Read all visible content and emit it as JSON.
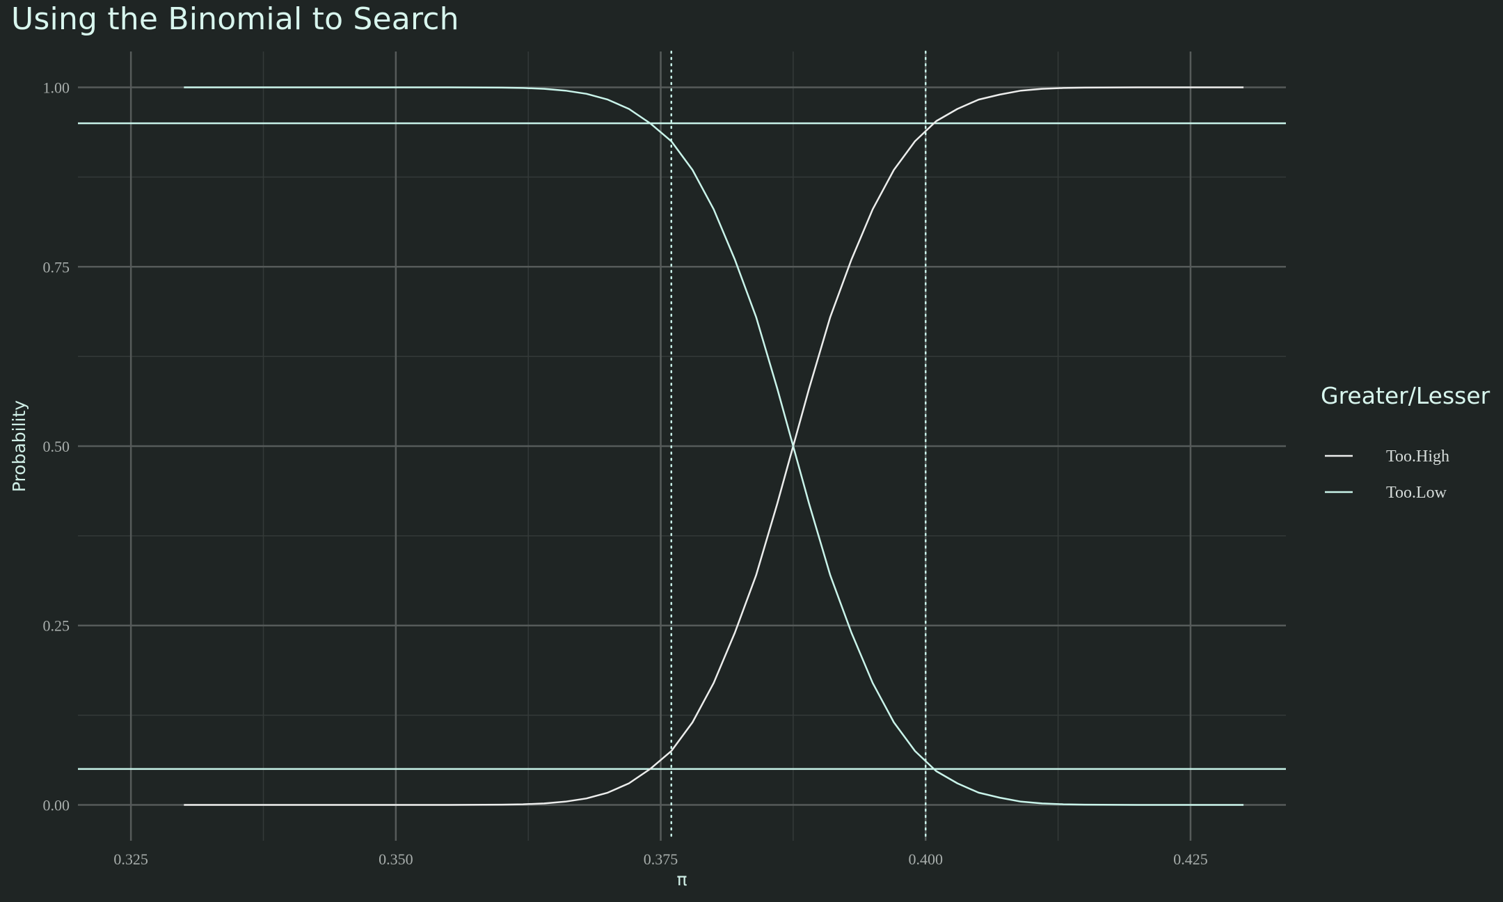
{
  "title": "Using the Binomial to Search",
  "colors": {
    "background": "#1f2524",
    "major_grid": "#565b5a",
    "minor_grid": "#343a39",
    "too_high": "#ecedec",
    "too_low": "#c9f4ea",
    "reference": "#c9f4ea"
  },
  "chart_data": {
    "type": "line",
    "xlabel": "π",
    "ylabel": "Probability",
    "xlim": [
      0.32,
      0.434
    ],
    "ylim": [
      -0.05,
      1.05
    ],
    "x_ticks": [
      0.325,
      0.35,
      0.375,
      0.4,
      0.425
    ],
    "x_tick_labels": [
      "0.325",
      "0.350",
      "0.375",
      "0.400",
      "0.425"
    ],
    "y_ticks": [
      0,
      0.25,
      0.5,
      0.75,
      1
    ],
    "y_tick_labels": [
      "0.00",
      "0.25",
      "0.50",
      "0.75",
      "1.00"
    ],
    "grid": true,
    "legend": {
      "title": "Greater/Lesser",
      "position": "right",
      "entries": [
        "Too.High",
        "Too.Low"
      ]
    },
    "x": [
      0.33,
      0.335,
      0.34,
      0.345,
      0.35,
      0.355,
      0.36,
      0.362,
      0.364,
      0.366,
      0.368,
      0.37,
      0.372,
      0.374,
      0.376,
      0.378,
      0.38,
      0.382,
      0.384,
      0.386,
      0.3875,
      0.389,
      0.391,
      0.393,
      0.395,
      0.397,
      0.399,
      0.401,
      0.403,
      0.405,
      0.407,
      0.409,
      0.411,
      0.413,
      0.415,
      0.42,
      0.425,
      0.43
    ],
    "series": [
      {
        "name": "Too.High",
        "values": [
          0,
          0,
          0,
          0,
          0,
          0,
          0.0003,
          0.0008,
          0.002,
          0.0045,
          0.009,
          0.017,
          0.03,
          0.05,
          0.075,
          0.115,
          0.17,
          0.24,
          0.32,
          0.42,
          0.5,
          0.58,
          0.68,
          0.76,
          0.83,
          0.885,
          0.925,
          0.953,
          0.97,
          0.983,
          0.99,
          0.9955,
          0.998,
          0.9992,
          0.9997,
          1,
          1,
          1
        ]
      },
      {
        "name": "Too.Low",
        "values": [
          1,
          1,
          1,
          1,
          1,
          1,
          0.9997,
          0.9992,
          0.998,
          0.9955,
          0.991,
          0.983,
          0.97,
          0.95,
          0.925,
          0.885,
          0.83,
          0.76,
          0.68,
          0.58,
          0.5,
          0.42,
          0.32,
          0.24,
          0.17,
          0.115,
          0.075,
          0.047,
          0.03,
          0.017,
          0.01,
          0.0045,
          0.002,
          0.0008,
          0.0003,
          0,
          0,
          0
        ]
      }
    ],
    "horizontal_lines": [
      0.95,
      0.05
    ],
    "vertical_dotted_lines": [
      0.376,
      0.4
    ]
  }
}
